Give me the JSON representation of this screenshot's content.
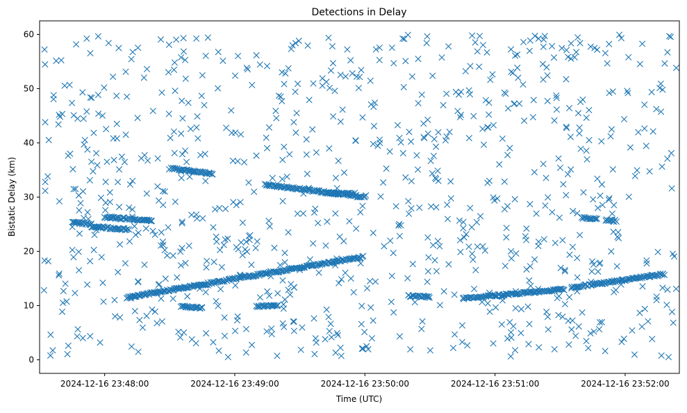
{
  "chart_data": {
    "type": "scatter",
    "title": "Detections in Delay",
    "xlabel": "Time (UTC)",
    "ylabel": "Bistatic Delay (km)",
    "marker": "x",
    "color": "#1f77b4",
    "grid": false,
    "legend": "none",
    "x_is_time": true,
    "xlim": [
      "2024-12-16 23:47:30",
      "2024-12-16 23:52:25"
    ],
    "ylim": [
      -2.5,
      62.5
    ],
    "x_ticks": [
      "2024-12-16 23:48:00",
      "2024-12-16 23:49:00",
      "2024-12-16 23:50:00",
      "2024-12-16 23:51:00",
      "2024-12-16 23:52:00"
    ],
    "y_ticks": [
      0,
      10,
      20,
      30,
      40,
      50,
      60
    ],
    "tracks": [
      {
        "start": [
          "2024-12-16 23:47:45",
          25.3
        ],
        "end": [
          "2024-12-16 23:47:54",
          25.0
        ]
      },
      {
        "start": [
          "2024-12-16 23:47:54",
          24.6
        ],
        "end": [
          "2024-12-16 23:48:11",
          24.0
        ]
      },
      {
        "start": [
          "2024-12-16 23:48:00",
          26.3
        ],
        "end": [
          "2024-12-16 23:48:22",
          25.7
        ]
      },
      {
        "start": [
          "2024-12-16 23:48:10",
          11.5
        ],
        "end": [
          "2024-12-16 23:49:59",
          19.0
        ]
      },
      {
        "start": [
          "2024-12-16 23:48:30",
          35.3
        ],
        "end": [
          "2024-12-16 23:48:50",
          34.3
        ]
      },
      {
        "start": [
          "2024-12-16 23:49:14",
          32.3
        ],
        "end": [
          "2024-12-16 23:50:00",
          30.0
        ]
      },
      {
        "start": [
          "2024-12-16 23:50:45",
          11.3
        ],
        "end": [
          "2024-12-16 23:51:32",
          13.0
        ]
      },
      {
        "start": [
          "2024-12-16 23:51:35",
          13.3
        ],
        "end": [
          "2024-12-16 23:52:18",
          15.8
        ]
      },
      {
        "start": [
          "2024-12-16 23:51:40",
          26.2
        ],
        "end": [
          "2024-12-16 23:51:47",
          26.0
        ]
      },
      {
        "start": [
          "2024-12-16 23:51:51",
          25.8
        ],
        "end": [
          "2024-12-16 23:51:56",
          25.6
        ]
      },
      {
        "start": [
          "2024-12-16 23:49:42",
          30.8
        ],
        "end": [
          "2024-12-16 23:49:55",
          30.6
        ]
      },
      {
        "start": [
          "2024-12-16 23:48:35",
          9.8
        ],
        "end": [
          "2024-12-16 23:48:45",
          9.6
        ]
      },
      {
        "start": [
          "2024-12-16 23:49:10",
          9.9
        ],
        "end": [
          "2024-12-16 23:49:20",
          10.0
        ]
      },
      {
        "start": [
          "2024-12-16 23:50:20",
          11.8
        ],
        "end": [
          "2024-12-16 23:50:30",
          11.6
        ]
      }
    ],
    "noise": {
      "count": 900,
      "x_range": [
        "2024-12-16 23:47:32",
        "2024-12-16 23:52:24"
      ],
      "y_range": [
        0.5,
        60
      ]
    }
  }
}
